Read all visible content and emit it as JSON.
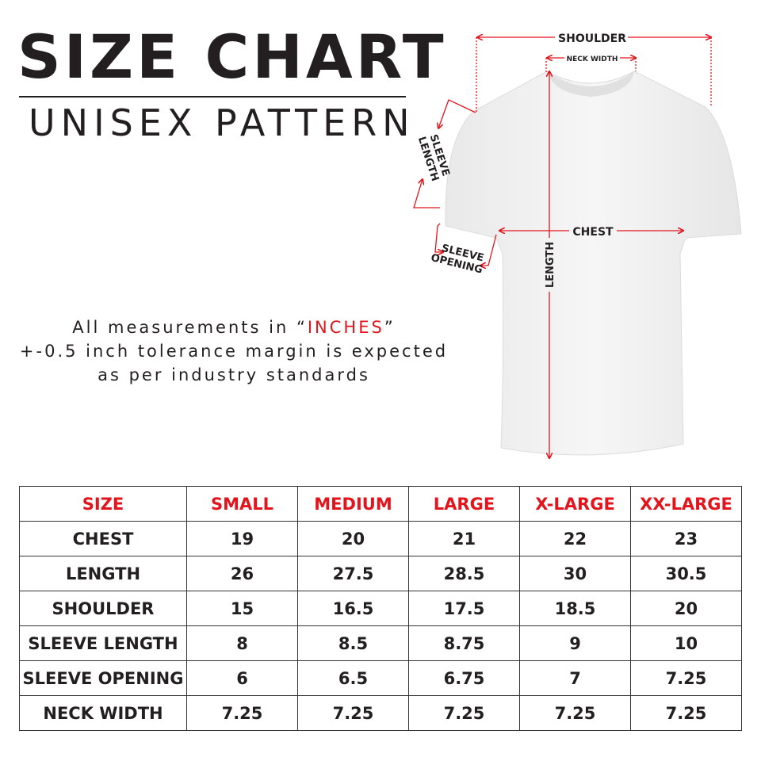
{
  "header": {
    "title": "SIZE CHART",
    "subtitle": "UNISEX PATTERN"
  },
  "note": {
    "line1_prefix": "All measurements in “",
    "line1_unit": "INCHES",
    "line1_suffix": "”",
    "line2": "+-0.5 inch tolerance margin is expected",
    "line3": "as per industry standards"
  },
  "diagram": {
    "labels": {
      "shoulder": "SHOULDER",
      "neck_width": "NECK WIDTH",
      "sleeve_length_1": "SLEEVE",
      "sleeve_length_2": "LENGTH",
      "chest": "CHEST",
      "sleeve_opening_1": "SLEEVE",
      "sleeve_opening_2": "OPENING",
      "length": "LENGTH"
    },
    "accent_color": "#e3141c"
  },
  "table": {
    "headers": [
      "SIZE",
      "SMALL",
      "MEDIUM",
      "LARGE",
      "X-LARGE",
      "XX-LARGE"
    ],
    "rows": [
      [
        "CHEST",
        "19",
        "20",
        "21",
        "22",
        "23"
      ],
      [
        "LENGTH",
        "26",
        "27.5",
        "28.5",
        "30",
        "30.5"
      ],
      [
        "SHOULDER",
        "15",
        "16.5",
        "17.5",
        "18.5",
        "20"
      ],
      [
        "SLEEVE LENGTH",
        "8",
        "8.5",
        "8.75",
        "9",
        "10"
      ],
      [
        "SLEEVE OPENING",
        "6",
        "6.5",
        "6.75",
        "7",
        "7.25"
      ],
      [
        "NECK WIDTH",
        "7.25",
        "7.25",
        "7.25",
        "7.25",
        "7.25"
      ]
    ]
  }
}
